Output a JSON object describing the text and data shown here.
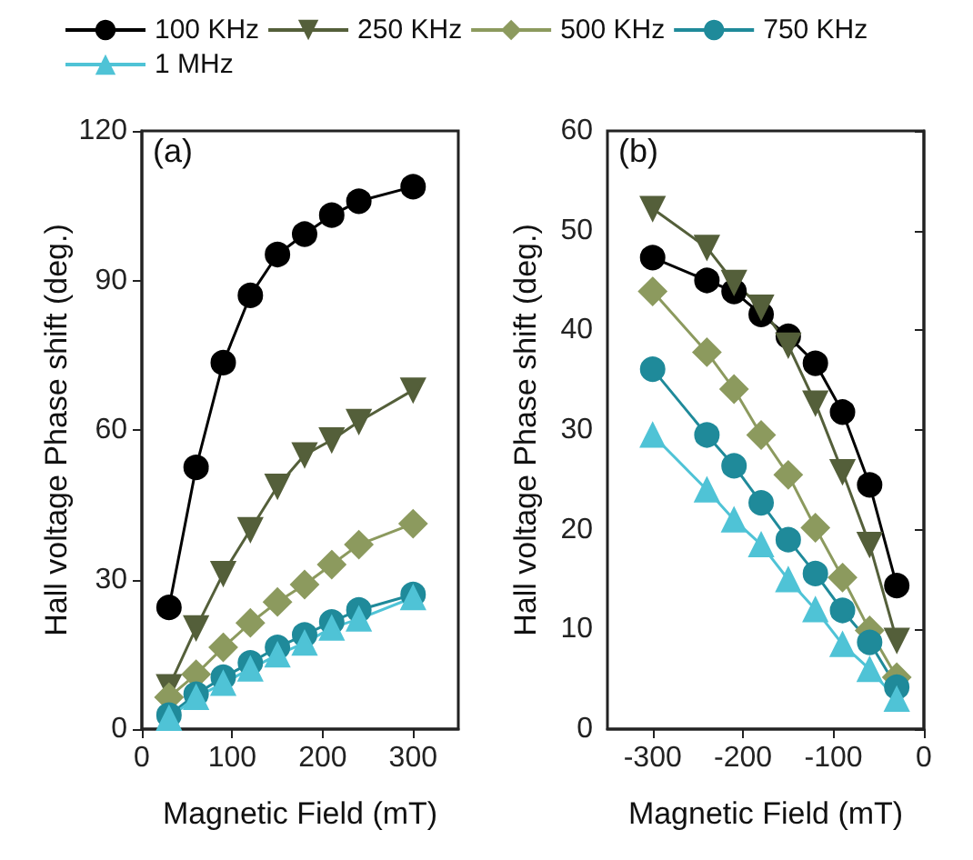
{
  "chart_data": [
    {
      "type": "line",
      "xlabel": "Magnetic Field (mT)",
      "ylabel": "Hall voltage Phase shift (deg.)",
      "annotations": [
        "(a)"
      ],
      "x": [
        30,
        60,
        90,
        120,
        150,
        180,
        210,
        240,
        300
      ],
      "xlim": [
        0,
        350
      ],
      "xticks": [
        0,
        100,
        200,
        300
      ],
      "ylim": [
        0,
        120
      ],
      "yticks": [
        0,
        30,
        60,
        90,
        120
      ],
      "grid": false,
      "legend": "top",
      "line_style": "solid",
      "series": [
        {
          "name": "100 KHz",
          "color": "#000000",
          "marker": "circle",
          "values": [
            24.4,
            52.5,
            73.5,
            87,
            95.2,
            99.3,
            103.1,
            105.9,
            108.8
          ]
        },
        {
          "name": "250 KHz",
          "color": "#545f3a",
          "marker": "triangle-down",
          "values": [
            8.5,
            20.3,
            31.2,
            40,
            48.7,
            55,
            58,
            61.7,
            68
          ]
        },
        {
          "name": "500 KHz",
          "color": "#8c9a5e",
          "marker": "diamond",
          "values": [
            6.4,
            11,
            16.4,
            21.3,
            25.5,
            29,
            33,
            37,
            41.2
          ]
        },
        {
          "name": "750 KHz",
          "color": "#1f8a9a",
          "marker": "circle",
          "values": [
            2.8,
            7,
            10.4,
            13.3,
            16.4,
            18.9,
            21.5,
            23.9,
            27
          ]
        },
        {
          "name": "1 MHz",
          "color": "#4fc3d6",
          "marker": "triangle",
          "values": [
            2.2,
            6.4,
            9.2,
            12.1,
            14.9,
            17.3,
            20.3,
            22.1,
            26.4
          ]
        }
      ]
    },
    {
      "type": "line",
      "xlabel": "Magnetic Field (mT)",
      "ylabel": "Hall voltage Phase shift (deg.)",
      "annotations": [
        "(b)"
      ],
      "x": [
        -300,
        -240,
        -210,
        -180,
        -150,
        -120,
        -90,
        -60,
        -30
      ],
      "xlim": [
        -350,
        0
      ],
      "xticks": [
        -300,
        -200,
        -100,
        0
      ],
      "ylim": [
        0,
        60
      ],
      "yticks": [
        0,
        10,
        20,
        30,
        40,
        50,
        60
      ],
      "grid": false,
      "line_style": "solid",
      "series": [
        {
          "color": "#000000",
          "marker": "circle",
          "values": [
            47.3,
            45,
            43.9,
            41.6,
            39.4,
            36.7,
            31.8,
            24.5,
            14.4
          ]
        },
        {
          "color": "#545f3a",
          "marker": "triangle-down",
          "values": [
            52.2,
            48.3,
            44.8,
            42.3,
            38.5,
            32.7,
            25.8,
            18.5,
            8.9
          ]
        },
        {
          "color": "#8c9a5e",
          "marker": "diamond",
          "values": [
            43.9,
            37.8,
            34.1,
            29.5,
            25.5,
            20.2,
            15.2,
            9.9,
            5.2
          ]
        },
        {
          "color": "#1f8a9a",
          "marker": "circle",
          "values": [
            36.1,
            29.5,
            26.4,
            22.7,
            19,
            15.6,
            11.9,
            8.7,
            4.2
          ]
        },
        {
          "color": "#4fc3d6",
          "marker": "triangle",
          "values": [
            29.5,
            24,
            21,
            18.5,
            15,
            12,
            8.5,
            6,
            3
          ]
        }
      ]
    }
  ]
}
